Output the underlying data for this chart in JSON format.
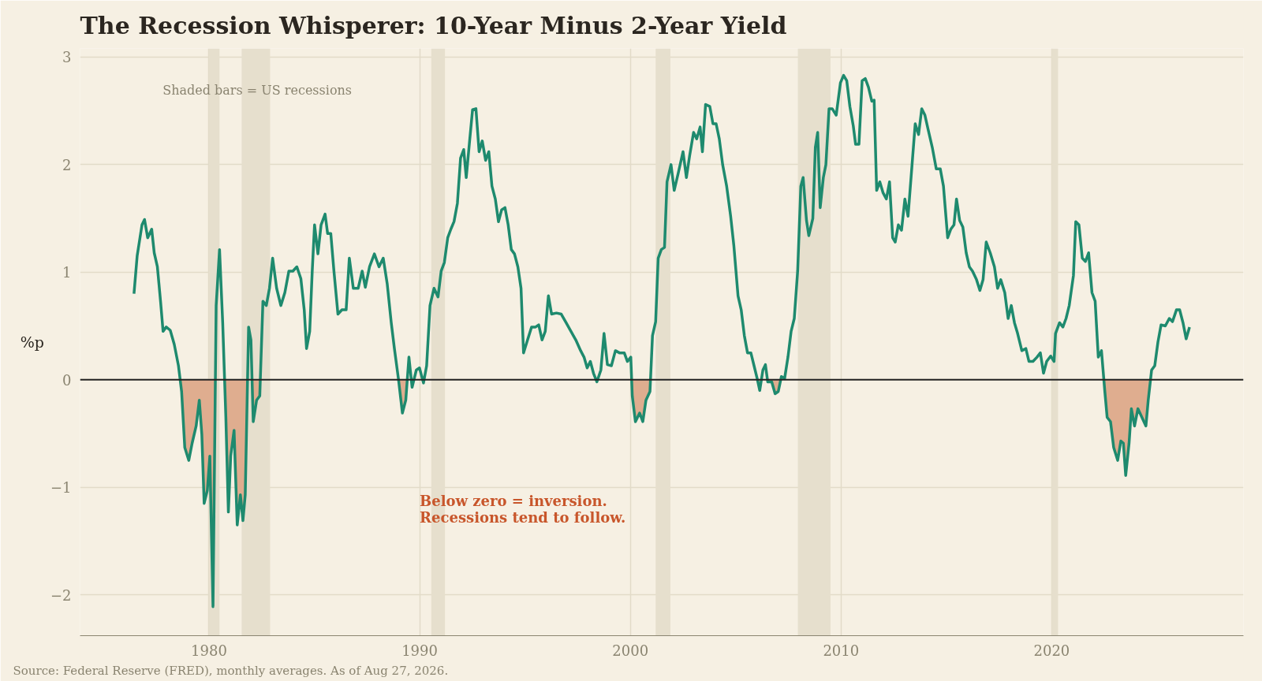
{
  "chart_data": {
    "type": "line",
    "title": "The Recession Whisperer: 10-Year Minus 2-Year Yield",
    "ylabel": "%p",
    "xlim": [
      1973.88,
      2029.1
    ],
    "ylim": [
      -2.38,
      3.08
    ],
    "xticks": [
      1980,
      1990,
      2000,
      2010,
      2020
    ],
    "yticks": [
      {
        "value": -2,
        "label": "−2"
      },
      {
        "value": -1,
        "label": "−1"
      },
      0,
      1,
      2,
      3
    ],
    "grid": true,
    "ref_lines": [
      {
        "axis": "y",
        "value": 0,
        "color": "#222222",
        "line_style": "solid"
      }
    ],
    "bands": [
      {
        "axis": "x",
        "from": 1980.0,
        "to": 1980.5,
        "color": "#e6dfcd"
      },
      {
        "axis": "x",
        "from": 1981.55,
        "to": 1982.9,
        "color": "#e6dfcd"
      },
      {
        "axis": "x",
        "from": 1990.55,
        "to": 1991.2,
        "color": "#e6dfcd"
      },
      {
        "axis": "x",
        "from": 2001.2,
        "to": 2001.9,
        "color": "#e6dfcd"
      },
      {
        "axis": "x",
        "from": 2007.95,
        "to": 2009.5,
        "color": "#e6dfcd"
      },
      {
        "axis": "x",
        "from": 2020.0,
        "to": 2020.3,
        "color": "#e6dfcd"
      }
    ],
    "annotations": [
      "Shaded bars = US recessions",
      "Below zero = inversion.\nRecessions tend to follow.",
      "Source: Federal Reserve (FRED), monthly averages. As of Aug 27, 2026."
    ],
    "x": [
      1976.44,
      1976.59,
      1976.82,
      1976.94,
      1977.09,
      1977.28,
      1977.4,
      1977.55,
      1977.7,
      1977.82,
      1977.97,
      1978.16,
      1978.35,
      1978.55,
      1978.7,
      1978.85,
      1979.04,
      1979.2,
      1979.39,
      1979.54,
      1979.66,
      1979.77,
      1979.92,
      1980.04,
      1980.19,
      1980.34,
      1980.5,
      1980.65,
      1980.8,
      1980.92,
      1981.03,
      1981.19,
      1981.34,
      1981.49,
      1981.61,
      1981.72,
      1981.88,
      1981.99,
      1982.1,
      1982.26,
      1982.41,
      1982.56,
      1982.72,
      1982.87,
      1983.02,
      1983.21,
      1983.41,
      1983.6,
      1983.79,
      1983.98,
      1984.17,
      1984.36,
      1984.52,
      1984.63,
      1984.78,
      1984.9,
      1985.01,
      1985.17,
      1985.32,
      1985.51,
      1985.63,
      1985.78,
      1985.93,
      1986.12,
      1986.31,
      1986.51,
      1986.66,
      1986.85,
      1987.08,
      1987.27,
      1987.42,
      1987.62,
      1987.85,
      1988.07,
      1988.27,
      1988.46,
      1988.65,
      1988.8,
      1988.99,
      1989.18,
      1989.34,
      1989.49,
      1989.64,
      1989.84,
      1989.99,
      1990.18,
      1990.33,
      1990.49,
      1990.68,
      1990.87,
      1991.02,
      1991.17,
      1991.33,
      1991.48,
      1991.63,
      1991.79,
      1991.94,
      1992.09,
      1992.21,
      1992.36,
      1992.51,
      1992.67,
      1992.82,
      1992.97,
      1993.13,
      1993.28,
      1993.43,
      1993.59,
      1993.74,
      1993.89,
      1994.05,
      1994.2,
      1994.35,
      1994.5,
      1994.66,
      1994.81,
      1994.93,
      1995.12,
      1995.31,
      1995.5,
      1995.65,
      1995.81,
      1995.96,
      1996.11,
      1996.26,
      1996.49,
      1996.72,
      1996.95,
      1997.18,
      1997.41,
      1997.64,
      1997.8,
      1997.95,
      1998.1,
      1998.25,
      1998.41,
      1998.6,
      1998.75,
      1998.91,
      1999.1,
      1999.29,
      1999.48,
      1999.71,
      1999.86,
      2000.02,
      2000.09,
      2000.24,
      2000.44,
      2000.59,
      2000.74,
      2000.93,
      2001.05,
      2001.2,
      2001.32,
      2001.47,
      2001.62,
      2001.74,
      2001.93,
      2002.08,
      2002.27,
      2002.5,
      2002.66,
      2002.81,
      2003.0,
      2003.15,
      2003.31,
      2003.42,
      2003.57,
      2003.77,
      2003.92,
      2004.07,
      2004.22,
      2004.38,
      2004.57,
      2004.76,
      2004.91,
      2005.11,
      2005.26,
      2005.41,
      2005.56,
      2005.72,
      2005.87,
      2006.02,
      2006.14,
      2006.29,
      2006.41,
      2006.52,
      2006.71,
      2006.87,
      2007.02,
      2007.17,
      2007.32,
      2007.48,
      2007.63,
      2007.78,
      2007.94,
      2008.09,
      2008.2,
      2008.36,
      2008.47,
      2008.66,
      2008.78,
      2008.89,
      2009.01,
      2009.16,
      2009.28,
      2009.43,
      2009.58,
      2009.77,
      2009.97,
      2010.12,
      2010.27,
      2010.42,
      2010.58,
      2010.69,
      2010.85,
      2011.0,
      2011.15,
      2011.3,
      2011.46,
      2011.57,
      2011.69,
      2011.84,
      2011.99,
      2012.15,
      2012.3,
      2012.45,
      2012.57,
      2012.72,
      2012.87,
      2013.03,
      2013.18,
      2013.37,
      2013.52,
      2013.68,
      2013.83,
      2013.98,
      2014.14,
      2014.33,
      2014.52,
      2014.71,
      2014.86,
      2015.06,
      2015.21,
      2015.36,
      2015.48,
      2015.63,
      2015.78,
      2015.94,
      2016.09,
      2016.24,
      2016.43,
      2016.59,
      2016.74,
      2016.89,
      2017.08,
      2017.28,
      2017.43,
      2017.58,
      2017.77,
      2017.93,
      2018.08,
      2018.23,
      2018.38,
      2018.58,
      2018.77,
      2018.92,
      2019.11,
      2019.3,
      2019.46,
      2019.61,
      2019.76,
      2019.95,
      2020.11,
      2020.18,
      2020.37,
      2020.53,
      2020.68,
      2020.83,
      2021.03,
      2021.14,
      2021.29,
      2021.45,
      2021.6,
      2021.75,
      2021.91,
      2022.06,
      2022.21,
      2022.36,
      2022.52,
      2022.63,
      2022.79,
      2022.94,
      2023.13,
      2023.28,
      2023.4,
      2023.51,
      2023.67,
      2023.78,
      2023.93,
      2024.09,
      2024.28,
      2024.47,
      2024.58,
      2024.74,
      2024.89,
      2025.04,
      2025.19,
      2025.39,
      2025.58,
      2025.73,
      2025.92,
      2026.07,
      2026.23,
      2026.38,
      2026.54
    ],
    "series": [
      {
        "type": "area",
        "color": "#dfad8f",
        "x": [
          1978.63,
          1978.7,
          1978.85,
          1979.04,
          1979.2,
          1979.39,
          1979.54,
          1979.66,
          1979.77,
          1979.92,
          1980.04,
          1980.19,
          1980.3,
          1980.74,
          1980.8,
          1980.92,
          1981.03,
          1981.19,
          1981.34,
          1981.49,
          1981.61,
          1981.72,
          1981.83,
          1982.04,
          1982.1,
          1982.26,
          1982.41,
          1982.44,
          1989.0,
          1989.18,
          1989.34,
          1989.41,
          1989.6,
          1989.64,
          1989.73,
          1990.14,
          1990.18,
          1990.2,
          1998.38,
          1998.41,
          1998.45,
          2000.05,
          2000.09,
          2000.24,
          2000.44,
          2000.59,
          2000.74,
          2000.93,
          2000.96,
          2006.03,
          2006.14,
          2006.22,
          2006.5,
          2006.52,
          2006.71,
          2006.87,
          2007.02,
          2007.13,
          2022.47,
          2022.52,
          2022.63,
          2022.79,
          2022.94,
          2023.13,
          2023.28,
          2023.4,
          2023.51,
          2023.67,
          2023.78,
          2023.93,
          2024.09,
          2024.28,
          2024.47,
          2024.58,
          2024.72
        ],
        "values": [
          0,
          -0.11,
          -0.63,
          -0.75,
          -0.59,
          -0.43,
          -0.19,
          -0.51,
          -1.15,
          -1.03,
          -0.71,
          -2.11,
          0,
          0,
          -0.35,
          -1.23,
          -0.71,
          -0.47,
          -1.35,
          -1.07,
          -1.31,
          -1.07,
          0,
          0,
          -0.39,
          -0.19,
          -0.15,
          0,
          0,
          -0.31,
          -0.19,
          0,
          0,
          -0.07,
          0,
          0,
          -0.03,
          0,
          0,
          -0.02,
          0,
          0,
          -0.15,
          -0.39,
          -0.31,
          -0.39,
          -0.19,
          -0.11,
          0,
          0,
          -0.1,
          0,
          0,
          -0.02,
          -0.02,
          -0.13,
          -0.11,
          0,
          0,
          -0.11,
          -0.35,
          -0.39,
          -0.63,
          -0.75,
          -0.57,
          -0.59,
          -0.89,
          -0.59,
          -0.27,
          -0.43,
          -0.27,
          -0.35,
          -0.43,
          -0.19,
          0
        ]
      },
      {
        "type": "line",
        "color": "#1e8a6e",
        "values": [
          0.8,
          1.15,
          1.44,
          1.49,
          1.32,
          1.4,
          1.18,
          1.05,
          0.73,
          0.45,
          0.49,
          0.46,
          0.33,
          0.13,
          -0.11,
          -0.63,
          -0.75,
          -0.59,
          -0.43,
          -0.19,
          -0.51,
          -1.15,
          -1.03,
          -0.71,
          -2.11,
          0.69,
          1.21,
          0.53,
          -0.35,
          -1.23,
          -0.71,
          -0.47,
          -1.35,
          -1.07,
          -1.31,
          -1.07,
          0.49,
          0.37,
          -0.39,
          -0.19,
          -0.15,
          0.73,
          0.69,
          0.85,
          1.13,
          0.85,
          0.69,
          0.81,
          1.01,
          1.01,
          1.05,
          0.94,
          0.65,
          0.29,
          0.45,
          1.01,
          1.44,
          1.17,
          1.44,
          1.54,
          1.36,
          1.36,
          1.01,
          0.61,
          0.65,
          0.65,
          1.13,
          0.85,
          0.85,
          1.01,
          0.86,
          1.05,
          1.17,
          1.05,
          1.13,
          0.89,
          0.53,
          0.29,
          0.01,
          -0.31,
          -0.19,
          0.21,
          -0.07,
          0.09,
          0.11,
          -0.03,
          0.13,
          0.69,
          0.85,
          0.77,
          1.01,
          1.09,
          1.32,
          1.4,
          1.47,
          1.64,
          2.06,
          2.14,
          1.88,
          2.2,
          2.51,
          2.52,
          2.12,
          2.22,
          2.04,
          2.12,
          1.8,
          1.68,
          1.47,
          1.58,
          1.6,
          1.44,
          1.21,
          1.17,
          1.05,
          0.85,
          0.25,
          0.37,
          0.49,
          0.49,
          0.51,
          0.37,
          0.45,
          0.78,
          0.61,
          0.62,
          0.61,
          0.53,
          0.45,
          0.37,
          0.27,
          0.21,
          0.11,
          0.17,
          0.06,
          -0.02,
          0.09,
          0.43,
          0.14,
          0.13,
          0.27,
          0.25,
          0.25,
          0.17,
          0.21,
          -0.15,
          -0.39,
          -0.31,
          -0.39,
          -0.19,
          -0.11,
          0.41,
          0.54,
          1.13,
          1.21,
          1.23,
          1.84,
          2.0,
          1.76,
          1.92,
          2.12,
          1.88,
          2.08,
          2.3,
          2.24,
          2.35,
          2.12,
          2.56,
          2.54,
          2.38,
          2.38,
          2.24,
          2.0,
          1.8,
          1.52,
          1.25,
          0.78,
          0.65,
          0.41,
          0.25,
          0.25,
          0.13,
          0.01,
          -0.1,
          0.09,
          0.14,
          -0.02,
          -0.02,
          -0.13,
          -0.11,
          0.03,
          0.01,
          0.21,
          0.45,
          0.57,
          1.01,
          1.8,
          1.88,
          1.48,
          1.34,
          1.5,
          2.16,
          2.3,
          1.6,
          1.88,
          2.0,
          2.52,
          2.52,
          2.46,
          2.76,
          2.83,
          2.78,
          2.54,
          2.36,
          2.19,
          2.19,
          2.78,
          2.8,
          2.72,
          2.59,
          2.6,
          1.76,
          1.84,
          1.74,
          1.68,
          1.84,
          1.32,
          1.28,
          1.44,
          1.39,
          1.68,
          1.52,
          2.0,
          2.38,
          2.28,
          2.52,
          2.46,
          2.32,
          2.16,
          1.96,
          1.96,
          1.8,
          1.32,
          1.4,
          1.44,
          1.68,
          1.48,
          1.42,
          1.18,
          1.05,
          1.01,
          0.93,
          0.83,
          0.93,
          1.28,
          1.18,
          1.05,
          0.85,
          0.93,
          0.81,
          0.57,
          0.69,
          0.53,
          0.43,
          0.27,
          0.29,
          0.17,
          0.17,
          0.21,
          0.25,
          0.06,
          0.17,
          0.22,
          0.17,
          0.43,
          0.53,
          0.49,
          0.57,
          0.69,
          0.97,
          1.47,
          1.44,
          1.13,
          1.1,
          1.18,
          0.81,
          0.73,
          0.21,
          0.27,
          -0.11,
          -0.35,
          -0.39,
          -0.63,
          -0.75,
          -0.57,
          -0.59,
          -0.89,
          -0.59,
          -0.27,
          -0.43,
          -0.27,
          -0.35,
          -0.43,
          -0.19,
          0.09,
          0.13,
          0.35,
          0.51,
          0.5,
          0.57,
          0.54,
          0.65,
          0.65,
          0.53,
          0.38,
          0.49
        ]
      }
    ]
  }
}
